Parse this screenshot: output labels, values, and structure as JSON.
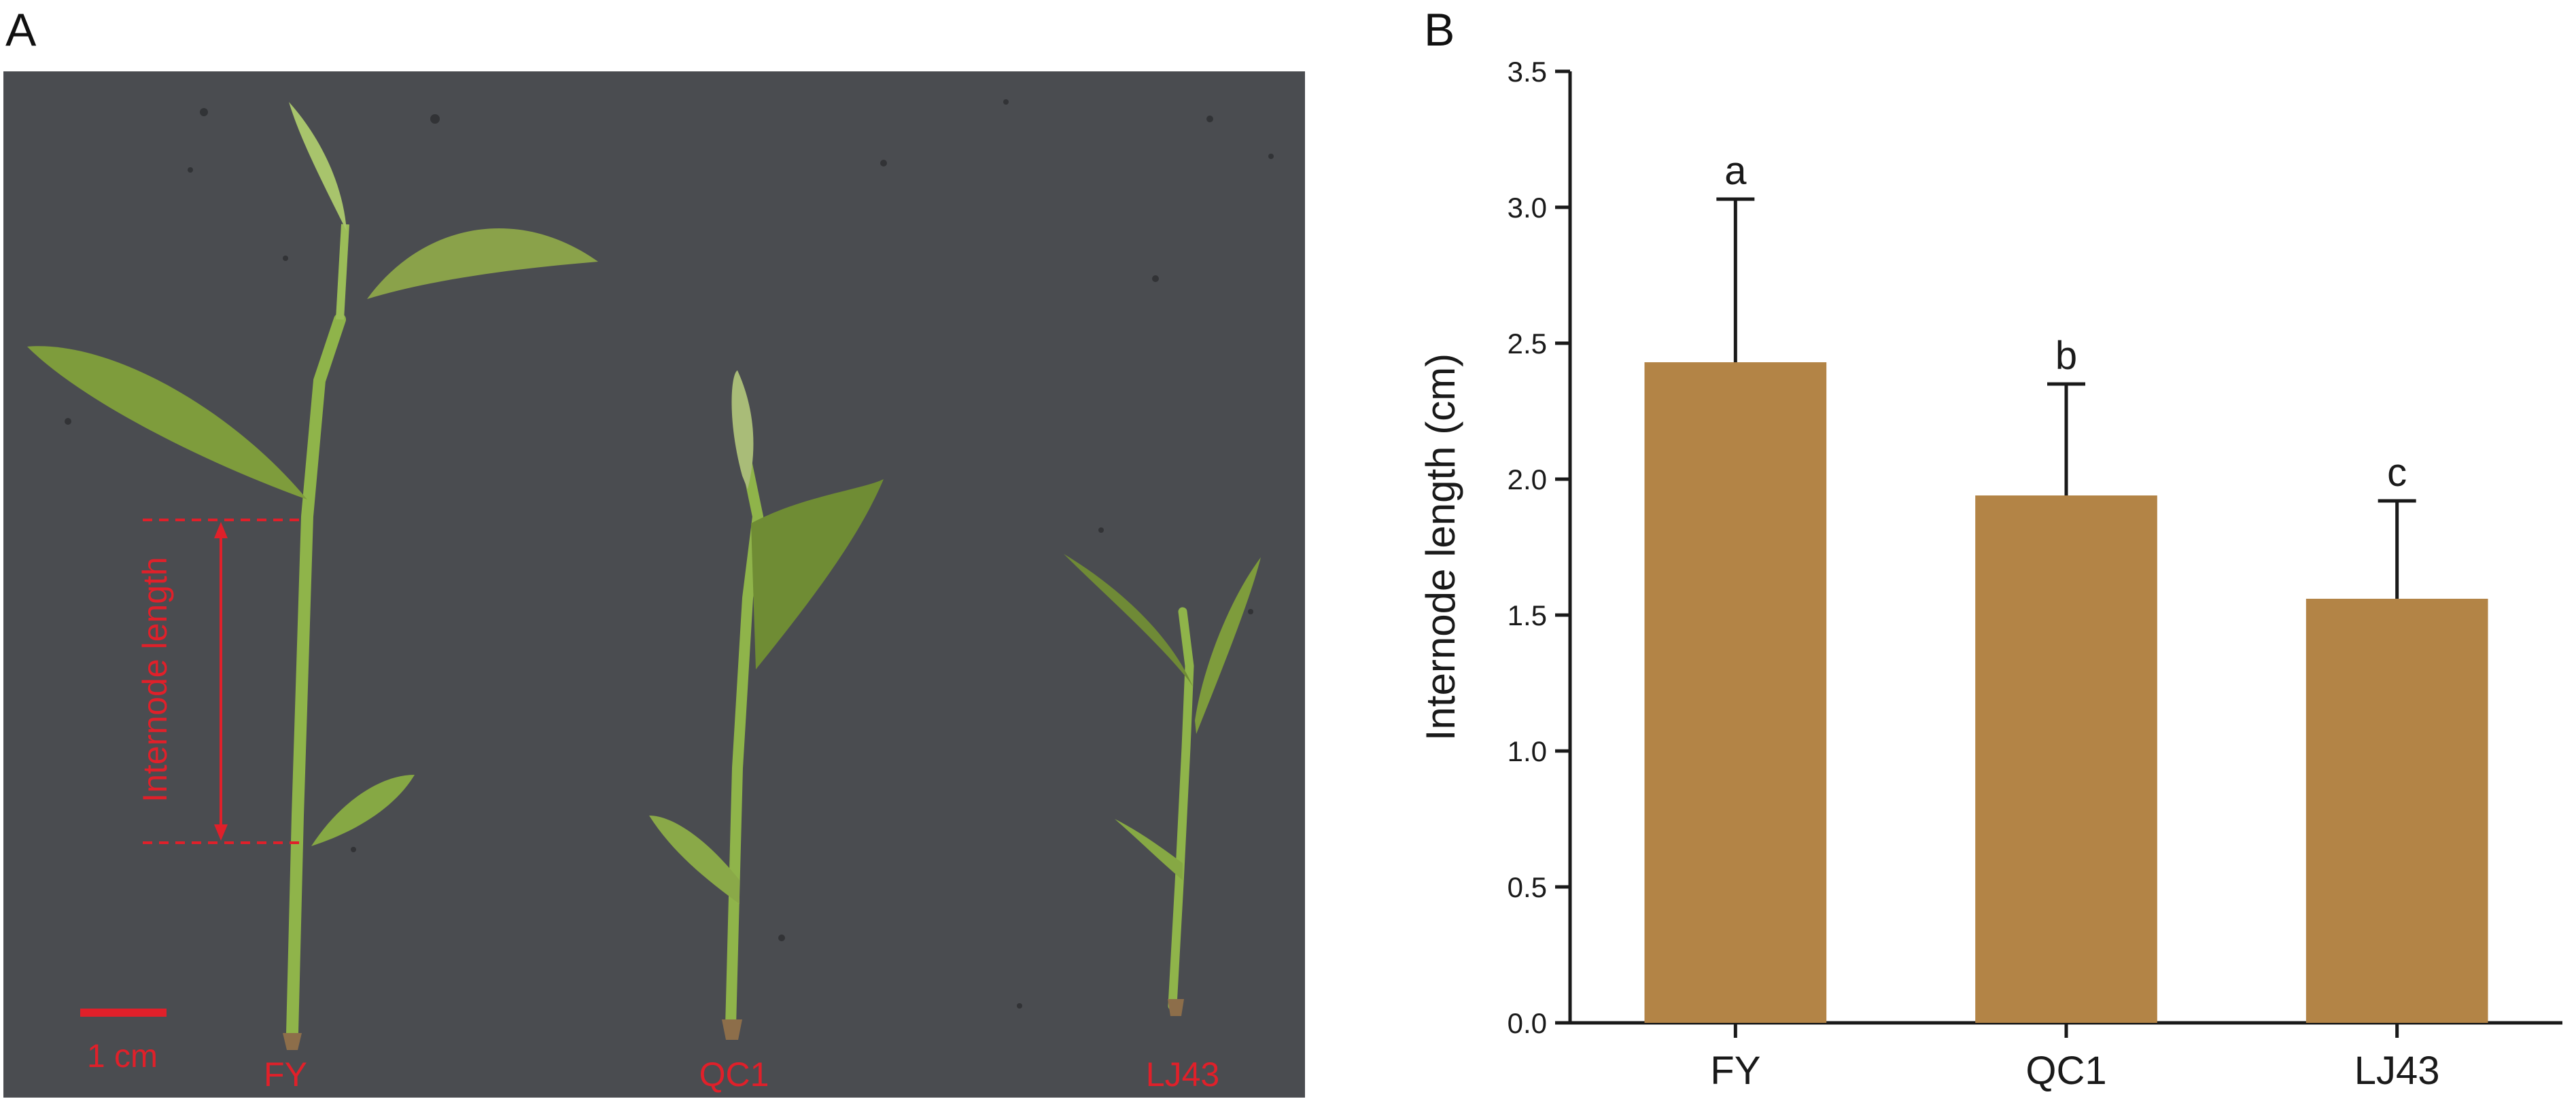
{
  "panels": {
    "a_label": "A",
    "b_label": "B"
  },
  "photo": {
    "background_color": "#4a4c50",
    "stem_color": "#8fb44a",
    "leaf_color": "#7e9c3c",
    "annotation_color": "#e0202a",
    "internode_label": "Internode length",
    "scale_bar_label": "1 cm",
    "samples": [
      {
        "label": "FY"
      },
      {
        "label": "QC1"
      },
      {
        "label": "LJ43"
      }
    ]
  },
  "chart_data": {
    "type": "bar",
    "categories": [
      "FY",
      "QC1",
      "LJ43"
    ],
    "values": [
      2.43,
      1.94,
      1.56
    ],
    "error_upper": [
      3.03,
      2.35,
      1.92
    ],
    "significance": [
      "a",
      "b",
      "c"
    ],
    "ylabel": "Internode length (cm)",
    "xlabel": "",
    "ylim": [
      0,
      3.5
    ],
    "yticks": [
      "0.0",
      "0.5",
      "1.0",
      "1.5",
      "2.0",
      "2.5",
      "3.0",
      "3.5"
    ],
    "bar_color": "#b38446",
    "grid": false
  }
}
